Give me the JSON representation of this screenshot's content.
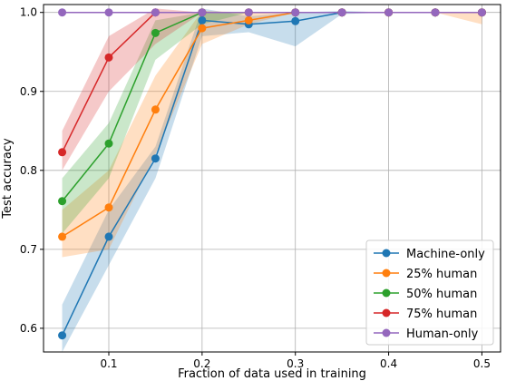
{
  "chart_data": {
    "type": "line",
    "title": "",
    "xlabel": "Fraction of data used in training",
    "ylabel": "Test accuracy",
    "xlim": [
      0.03,
      0.52
    ],
    "ylim": [
      0.57,
      1.01
    ],
    "xticks": [
      "0.1",
      "0.2",
      "0.3",
      "0.4",
      "0.5"
    ],
    "yticks": [
      "0.6",
      "0.7",
      "0.8",
      "0.9",
      "1.0"
    ],
    "xtick_values": [
      0.1,
      0.2,
      0.3,
      0.4,
      0.5
    ],
    "ytick_values": [
      0.6,
      0.7,
      0.8,
      0.9,
      1.0
    ],
    "grid": true,
    "legend_position": "bottom-right",
    "x": [
      0.05,
      0.1,
      0.15,
      0.2,
      0.25,
      0.3,
      0.35,
      0.4,
      0.45,
      0.5
    ],
    "series": [
      {
        "name": "Machine-only",
        "color": "#1f77b4",
        "values": [
          0.591,
          0.716,
          0.815,
          0.99,
          0.985,
          0.989,
          1.0,
          1.0,
          1.0,
          1.0
        ],
        "lower": [
          0.57,
          0.68,
          0.79,
          0.97,
          0.975,
          0.957,
          0.998,
          1.0,
          1.0,
          1.0
        ],
        "upper": [
          0.63,
          0.75,
          0.83,
          1.005,
          0.995,
          1.0,
          1.002,
          1.0,
          1.0,
          1.0
        ]
      },
      {
        "name": "25% human",
        "color": "#ff7f0e",
        "values": [
          0.716,
          0.753,
          0.877,
          0.98,
          0.99,
          1.0,
          1.0,
          1.0,
          1.0,
          1.0
        ],
        "lower": [
          0.69,
          0.7,
          0.82,
          0.96,
          0.985,
          1.0,
          1.0,
          1.0,
          1.0,
          0.985
        ],
        "upper": [
          0.75,
          0.8,
          0.92,
          1.002,
          1.0,
          1.0,
          1.0,
          1.0,
          1.0,
          1.0
        ]
      },
      {
        "name": "50% human",
        "color": "#2ca02c",
        "values": [
          0.761,
          0.834,
          0.974,
          1.0,
          1.0,
          1.0,
          1.0,
          1.0,
          1.0,
          1.0
        ],
        "lower": [
          0.72,
          0.79,
          0.94,
          0.985,
          1.0,
          1.0,
          1.0,
          1.0,
          1.0,
          1.0
        ],
        "upper": [
          0.79,
          0.86,
          0.99,
          1.0,
          1.0,
          1.0,
          1.0,
          1.0,
          1.0,
          1.0
        ]
      },
      {
        "name": "75% human",
        "color": "#d62728",
        "values": [
          0.823,
          0.943,
          1.0,
          1.0,
          1.0,
          1.0,
          1.0,
          1.0,
          1.0,
          1.0
        ],
        "lower": [
          0.8,
          0.9,
          0.96,
          1.0,
          1.0,
          1.0,
          1.0,
          1.0,
          1.0,
          1.0
        ],
        "upper": [
          0.85,
          0.97,
          1.005,
          1.0,
          1.0,
          1.0,
          1.0,
          1.0,
          1.0,
          1.0
        ]
      },
      {
        "name": "Human-only",
        "color": "#9467bd",
        "values": [
          1.0,
          1.0,
          1.0,
          1.0,
          1.0,
          1.0,
          1.0,
          1.0,
          1.0,
          1.0
        ],
        "lower": [
          1.0,
          1.0,
          1.0,
          1.0,
          1.0,
          1.0,
          1.0,
          1.0,
          1.0,
          1.0
        ],
        "upper": [
          1.0,
          1.0,
          1.0,
          1.0,
          1.0,
          1.0,
          1.0,
          1.0,
          1.0,
          1.0
        ]
      }
    ]
  }
}
